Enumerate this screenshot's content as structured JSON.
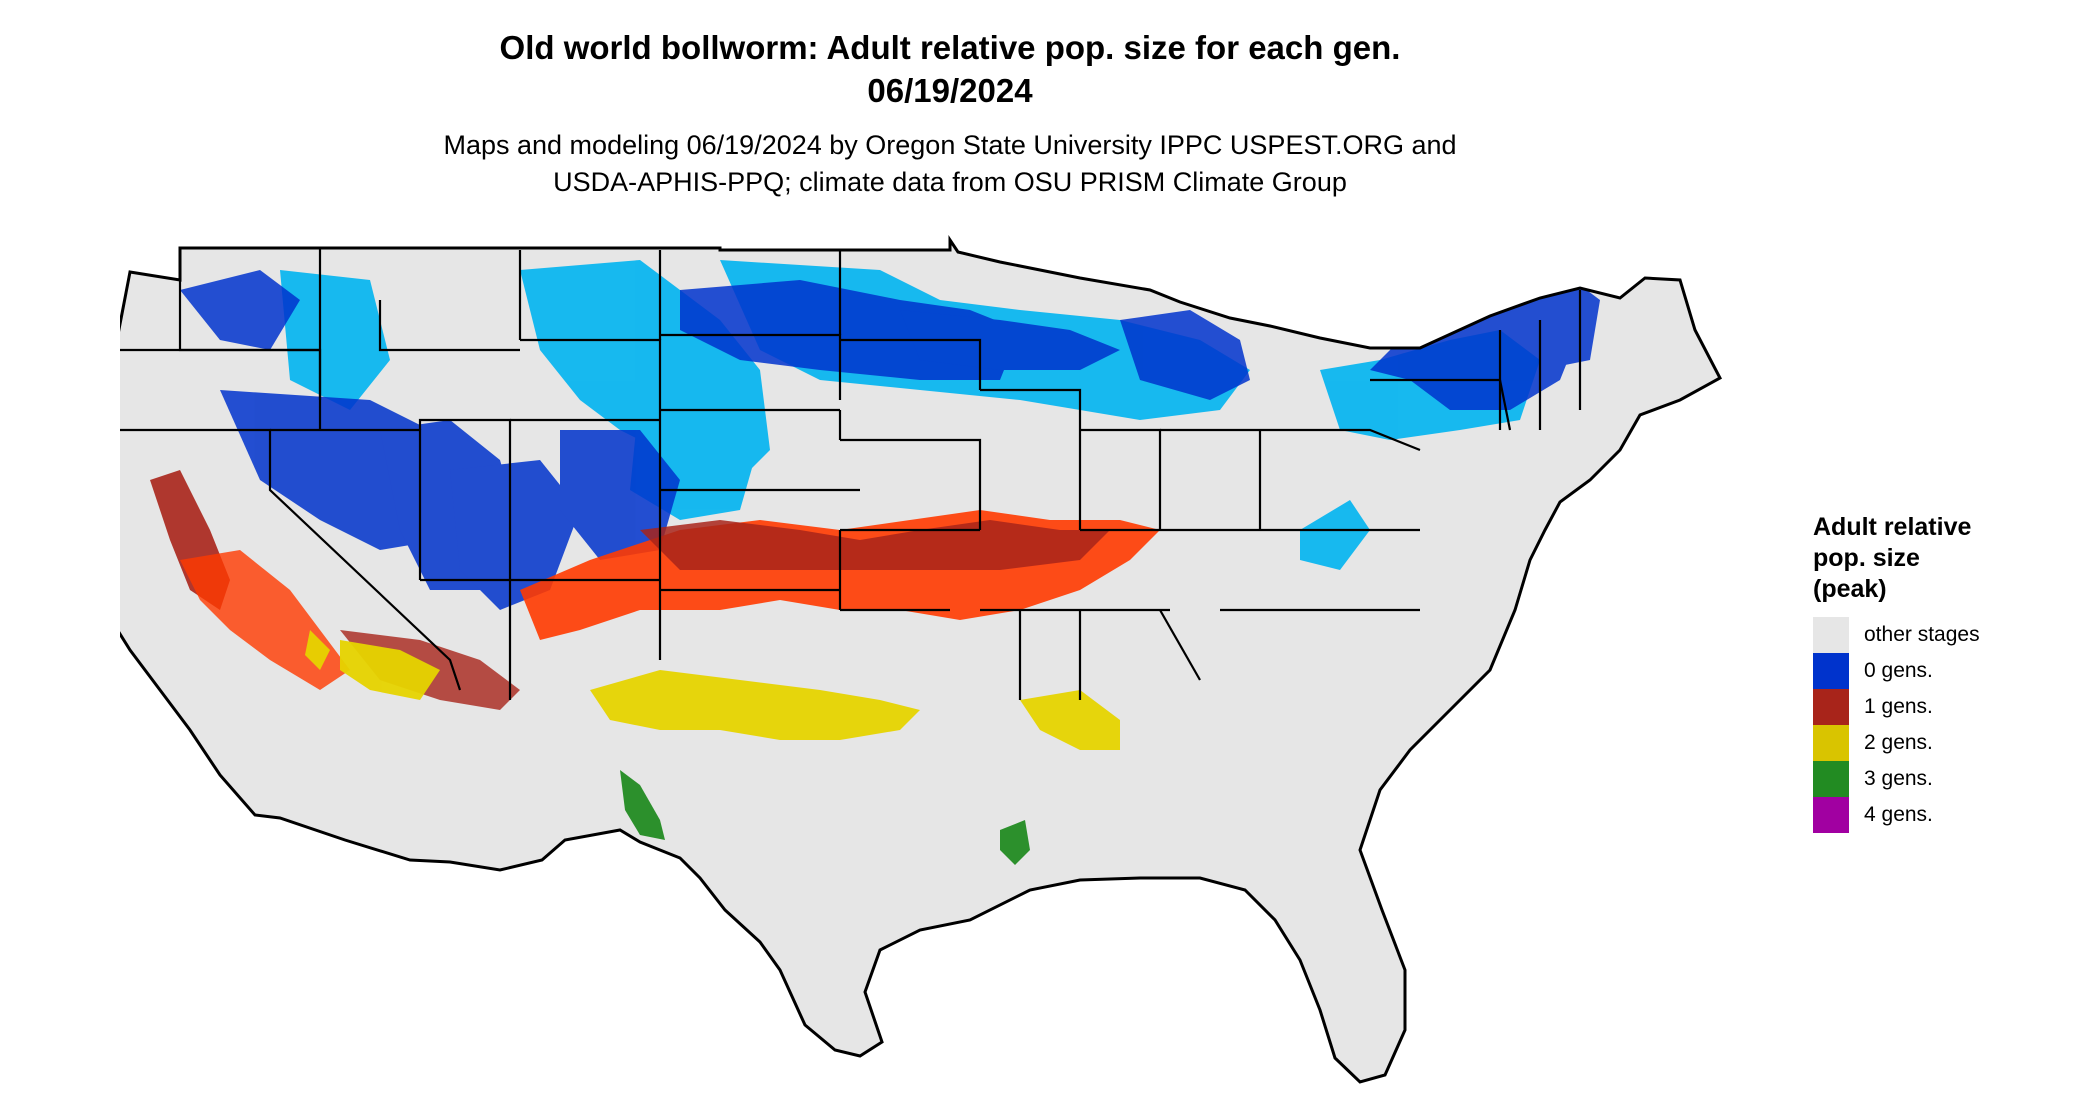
{
  "title": {
    "line1": "Old world bollworm: Adult relative pop. size for each gen.",
    "line2": "06/19/2024"
  },
  "subtitle": {
    "line1": "Maps and modeling 06/19/2024 by Oregon State University IPPC USPEST.ORG and",
    "line2": "USDA-APHIS-PPQ; climate data from OSU PRISM Climate Group"
  },
  "map": {
    "background_color": "#e6e6e6",
    "border_color": "#000000"
  },
  "legend": {
    "title_line1": "Adult relative",
    "title_line2": "pop. size",
    "title_line3": "(peak)",
    "items": [
      {
        "label": "other stages",
        "color": "#e6e6e6"
      },
      {
        "label": "0 gens.",
        "color": "#0033cc"
      },
      {
        "label": "1 gens.",
        "color": "#a8241a"
      },
      {
        "label": "2 gens.",
        "color": "#d9c400"
      },
      {
        "label": "3 gens.",
        "color": "#228b22"
      },
      {
        "label": "4 gens.",
        "color": "#a100a1"
      }
    ]
  }
}
